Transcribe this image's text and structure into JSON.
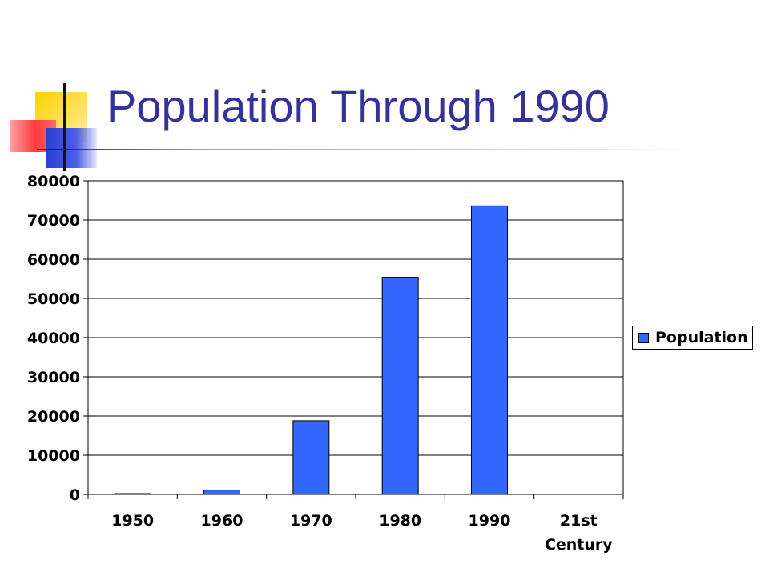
{
  "slide": {
    "title": "Population Through 1990"
  },
  "colors": {
    "title": "#333399",
    "bar": "#3366ff",
    "accent_yellow": "#ffd200",
    "accent_blue": "#2b3fd8",
    "accent_red": "#ff3b3b"
  },
  "chart_data": {
    "type": "bar",
    "categories": [
      [
        "1950"
      ],
      [
        "1960"
      ],
      [
        "1970"
      ],
      [
        "1980"
      ],
      [
        "1990"
      ],
      [
        "21st",
        "Century"
      ]
    ],
    "series": [
      {
        "name": "Population",
        "values": [
          200,
          1100,
          18800,
          55400,
          73600,
          0
        ]
      }
    ],
    "ylim": [
      0,
      80000
    ],
    "yticks": [
      0,
      10000,
      20000,
      30000,
      40000,
      50000,
      60000,
      70000,
      80000
    ],
    "grid": true,
    "legend": "right"
  }
}
